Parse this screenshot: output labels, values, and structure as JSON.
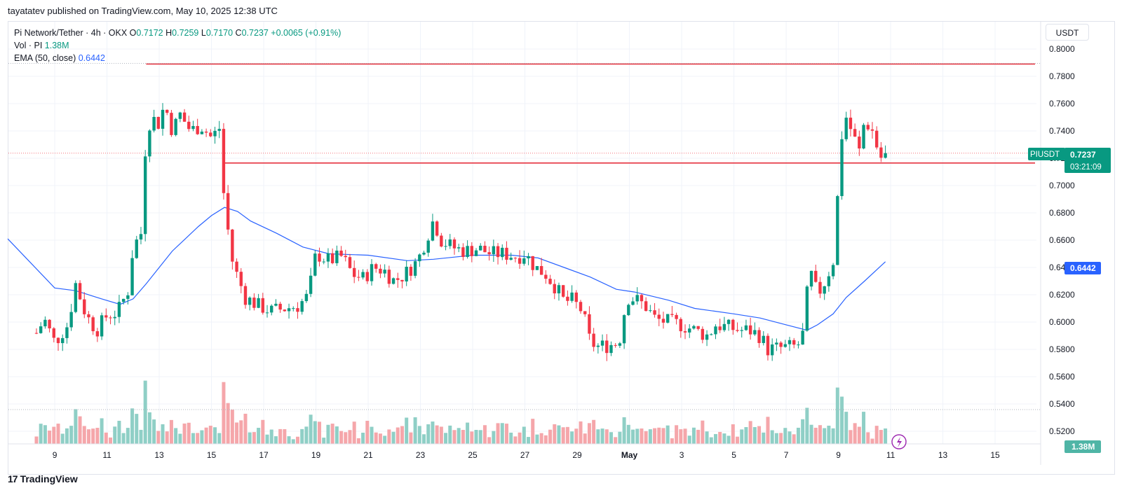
{
  "header": {
    "published": "tayatatev published on TradingView.com, May 10, 2025 12:38 UTC"
  },
  "legend": {
    "symbol": "Pi Network/Tether · 4h · OKX",
    "o_label": "O",
    "o": "0.7172",
    "h_label": "H",
    "h": "0.7259",
    "l_label": "L",
    "l": "0.7170",
    "c_label": "C",
    "c": "0.7237",
    "change": "+0.0065 (+0.91%)",
    "vol_label": "Vol · PI",
    "vol": "1.38M",
    "ema_label": "EMA (50, close)",
    "ema": "0.6442"
  },
  "currency": "USDT",
  "footer": {
    "brand": "TradingView",
    "logo_glyph": "17"
  },
  "price_tag": {
    "symbol": "PIUSDT",
    "price": "0.7237",
    "countdown": "03:21:09"
  },
  "ema_tag": "0.6442",
  "vol_tag": "1.38M",
  "colors": {
    "up": "#089981",
    "down": "#f23645",
    "ema": "#2962ff",
    "level": "#e5323f",
    "up_vol": "#8fcfc6",
    "down_vol": "#f5a6aa"
  },
  "chart_data": {
    "type": "candlestick",
    "symbol": "PIUSDT",
    "interval": "4h",
    "y_range": [
      0.52,
      0.8
    ],
    "y_ticks": [
      "0.8000",
      "0.7800",
      "0.7600",
      "0.7400",
      "0.7200",
      "0.7000",
      "0.6800",
      "0.6600",
      "0.6400",
      "0.6200",
      "0.6000",
      "0.5800",
      "0.5600",
      "0.5400",
      "0.5200"
    ],
    "x_start_day": 7.2,
    "x_ticks": [
      {
        "day": 9,
        "label": "9"
      },
      {
        "day": 11,
        "label": "11"
      },
      {
        "day": 13,
        "label": "13"
      },
      {
        "day": 15,
        "label": "15"
      },
      {
        "day": 17,
        "label": "17"
      },
      {
        "day": 19,
        "label": "19"
      },
      {
        "day": 21,
        "label": "21"
      },
      {
        "day": 23,
        "label": "23"
      },
      {
        "day": 25,
        "label": "25"
      },
      {
        "day": 27,
        "label": "27"
      },
      {
        "day": 29,
        "label": "29"
      },
      {
        "day": 31,
        "label": "May"
      },
      {
        "day": 33,
        "label": "3"
      },
      {
        "day": 35,
        "label": "5"
      },
      {
        "day": 37,
        "label": "7"
      },
      {
        "day": 39,
        "label": "9"
      },
      {
        "day": 41,
        "label": "11"
      },
      {
        "day": 43,
        "label": "13"
      },
      {
        "day": 45,
        "label": "15"
      }
    ],
    "horizontal_levels": [
      {
        "price": 0.789,
        "from_day": 12.5
      },
      {
        "price": 0.7165,
        "from_day": 15.5
      }
    ],
    "close_path": [
      [
        8.3,
        0.592
      ],
      [
        8.6,
        0.602
      ],
      [
        9.0,
        0.585
      ],
      [
        9.5,
        0.598
      ],
      [
        9.8,
        0.628
      ],
      [
        10.2,
        0.605
      ],
      [
        10.6,
        0.594
      ],
      [
        11.0,
        0.605
      ],
      [
        11.4,
        0.607
      ],
      [
        11.8,
        0.623
      ],
      [
        12.0,
        0.655
      ],
      [
        12.3,
        0.665
      ],
      [
        12.5,
        0.738
      ],
      [
        12.7,
        0.75
      ],
      [
        13.0,
        0.745
      ],
      [
        13.2,
        0.76
      ],
      [
        13.5,
        0.74
      ],
      [
        13.8,
        0.752
      ],
      [
        14.2,
        0.74
      ],
      [
        14.6,
        0.744
      ],
      [
        15.0,
        0.735
      ],
      [
        15.3,
        0.742
      ],
      [
        15.5,
        0.685
      ],
      [
        15.8,
        0.645
      ],
      [
        16.0,
        0.633
      ],
      [
        16.3,
        0.618
      ],
      [
        16.8,
        0.612
      ],
      [
        17.3,
        0.608
      ],
      [
        17.8,
        0.61
      ],
      [
        18.3,
        0.612
      ],
      [
        18.7,
        0.619
      ],
      [
        19.0,
        0.65
      ],
      [
        19.5,
        0.645
      ],
      [
        20.0,
        0.648
      ],
      [
        20.4,
        0.635
      ],
      [
        20.8,
        0.632
      ],
      [
        21.2,
        0.64
      ],
      [
        21.6,
        0.638
      ],
      [
        22.0,
        0.63
      ],
      [
        22.4,
        0.635
      ],
      [
        22.9,
        0.645
      ],
      [
        23.2,
        0.66
      ],
      [
        23.5,
        0.675
      ],
      [
        23.8,
        0.66
      ],
      [
        24.2,
        0.655
      ],
      [
        24.7,
        0.652
      ],
      [
        25.2,
        0.654
      ],
      [
        25.7,
        0.65
      ],
      [
        26.2,
        0.65
      ],
      [
        26.7,
        0.648
      ],
      [
        27.0,
        0.65
      ],
      [
        27.4,
        0.64
      ],
      [
        27.8,
        0.635
      ],
      [
        28.2,
        0.625
      ],
      [
        28.5,
        0.615
      ],
      [
        28.8,
        0.616
      ],
      [
        29.2,
        0.608
      ],
      [
        29.5,
        0.585
      ],
      [
        29.8,
        0.582
      ],
      [
        30.2,
        0.583
      ],
      [
        30.6,
        0.585
      ],
      [
        30.9,
        0.618
      ],
      [
        31.2,
        0.617
      ],
      [
        31.6,
        0.612
      ],
      [
        32.0,
        0.602
      ],
      [
        32.5,
        0.6
      ],
      [
        33.0,
        0.598
      ],
      [
        33.5,
        0.594
      ],
      [
        34.0,
        0.59
      ],
      [
        34.3,
        0.598
      ],
      [
        34.8,
        0.596
      ],
      [
        35.2,
        0.594
      ],
      [
        35.6,
        0.594
      ],
      [
        36.0,
        0.59
      ],
      [
        36.3,
        0.58
      ],
      [
        36.8,
        0.581
      ],
      [
        37.3,
        0.582
      ],
      [
        37.6,
        0.585
      ],
      [
        37.9,
        0.638
      ],
      [
        38.2,
        0.62
      ],
      [
        38.5,
        0.63
      ],
      [
        38.8,
        0.645
      ],
      [
        39.0,
        0.7
      ],
      [
        39.2,
        0.755
      ],
      [
        39.5,
        0.74
      ],
      [
        39.8,
        0.725
      ],
      [
        40.0,
        0.748
      ],
      [
        40.3,
        0.74
      ],
      [
        40.6,
        0.72
      ],
      [
        40.8,
        0.7237
      ]
    ],
    "ema_path": [
      [
        7.2,
        0.661
      ],
      [
        8.0,
        0.645
      ],
      [
        9.0,
        0.625
      ],
      [
        9.8,
        0.623
      ],
      [
        10.8,
        0.617
      ],
      [
        11.5,
        0.613
      ],
      [
        12.0,
        0.617
      ],
      [
        12.5,
        0.628
      ],
      [
        13.5,
        0.652
      ],
      [
        14.5,
        0.67
      ],
      [
        15.0,
        0.678
      ],
      [
        15.5,
        0.684
      ],
      [
        16.0,
        0.681
      ],
      [
        16.5,
        0.674
      ],
      [
        17.5,
        0.665
      ],
      [
        18.5,
        0.655
      ],
      [
        19.5,
        0.65
      ],
      [
        21.0,
        0.649
      ],
      [
        22.5,
        0.645
      ],
      [
        23.5,
        0.646
      ],
      [
        25.0,
        0.649
      ],
      [
        26.5,
        0.649
      ],
      [
        27.5,
        0.647
      ],
      [
        28.5,
        0.64
      ],
      [
        29.5,
        0.633
      ],
      [
        30.5,
        0.624
      ],
      [
        31.2,
        0.622
      ],
      [
        32.5,
        0.616
      ],
      [
        33.5,
        0.61
      ],
      [
        35.0,
        0.606
      ],
      [
        36.0,
        0.603
      ],
      [
        37.0,
        0.598
      ],
      [
        37.8,
        0.594
      ],
      [
        38.2,
        0.598
      ],
      [
        38.8,
        0.606
      ],
      [
        39.3,
        0.618
      ],
      [
        40.0,
        0.63
      ],
      [
        40.8,
        0.6442
      ]
    ]
  }
}
